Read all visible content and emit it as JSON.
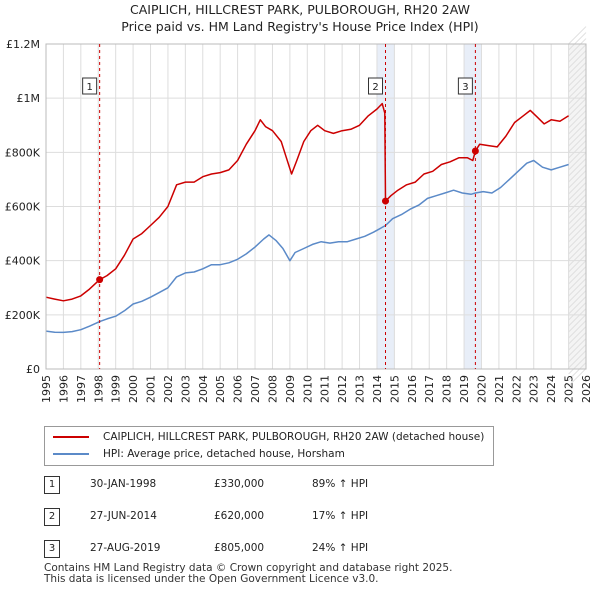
{
  "title_line1": "CAIPLICH, HILLCREST PARK, PULBOROUGH, RH20 2AW",
  "title_line2": "Price paid vs. HM Land Registry's House Price Index (HPI)",
  "colors": {
    "property": "#cc0000",
    "hpi": "#5b8ac8",
    "shade": "#e8eef8",
    "marker": "#cc0000",
    "grid": "#dddddd"
  },
  "legend": {
    "property_label": "CAIPLICH, HILLCREST PARK, PULBOROUGH, RH20 2AW (detached house)",
    "hpi_label": "HPI: Average price, detached house, Horsham"
  },
  "transactions": [
    {
      "num": "1",
      "date": "30-JAN-1998",
      "price": "£330,000",
      "hpi": "89% ↑ HPI"
    },
    {
      "num": "2",
      "date": "27-JUN-2014",
      "price": "£620,000",
      "hpi": "17% ↑ HPI"
    },
    {
      "num": "3",
      "date": "27-AUG-2019",
      "price": "£805,000",
      "hpi": "24% ↑ HPI"
    }
  ],
  "footer": {
    "line1": "Contains HM Land Registry data © Crown copyright and database right 2025.",
    "line2": "This data is licensed under the Open Government Licence v3.0."
  },
  "chart_data": {
    "type": "line",
    "title": "Price paid vs. HM Land Registry's House Price Index (HPI)",
    "xlabel": "",
    "ylabel": "",
    "xlim": [
      1995,
      2026
    ],
    "ylim": [
      0,
      1200000
    ],
    "y_ticks": [
      0,
      200000,
      400000,
      600000,
      800000,
      1000000,
      1200000
    ],
    "y_tick_labels": [
      "£0",
      "£200K",
      "£400K",
      "£600K",
      "£800K",
      "£1M",
      "£1.2M"
    ],
    "x_ticks": [
      1995,
      1996,
      1997,
      1998,
      1999,
      2000,
      2001,
      2002,
      2003,
      2004,
      2005,
      2006,
      2007,
      2008,
      2009,
      2010,
      2011,
      2012,
      2013,
      2014,
      2015,
      2016,
      2017,
      2018,
      2019,
      2020,
      2021,
      2022,
      2023,
      2024,
      2025,
      2026
    ],
    "x_tick_labels": [
      "1995",
      "1996",
      "1997",
      "1998",
      "1999",
      "2000",
      "2001",
      "2002",
      "2003",
      "2004",
      "2005",
      "2006",
      "2007",
      "2008",
      "2009",
      "2010",
      "2011",
      "2012",
      "2013",
      "2014",
      "2015",
      "2016",
      "2017",
      "2018",
      "2019",
      "2020",
      "2021",
      "2022",
      "2023",
      "2024",
      "2025",
      "2026"
    ],
    "shaded_years": [
      2014,
      2015,
      2019,
      2020
    ],
    "future_from": 2025,
    "sales": [
      {
        "label": "1",
        "year": 1998.08,
        "value": 330000
      },
      {
        "label": "2",
        "year": 2014.49,
        "value": 620000
      },
      {
        "label": "3",
        "year": 2019.65,
        "value": 805000
      }
    ],
    "series": [
      {
        "name": "CAIPLICH, HILLCREST PARK, PULBOROUGH, RH20 2AW (detached house)",
        "points": [
          [
            1995.0,
            265000
          ],
          [
            1995.5,
            258000
          ],
          [
            1996.0,
            252000
          ],
          [
            1996.5,
            258000
          ],
          [
            1997.0,
            270000
          ],
          [
            1997.5,
            295000
          ],
          [
            1998.08,
            330000
          ],
          [
            1998.5,
            345000
          ],
          [
            1999.0,
            370000
          ],
          [
            1999.5,
            420000
          ],
          [
            2000.0,
            480000
          ],
          [
            2000.5,
            500000
          ],
          [
            2001.0,
            530000
          ],
          [
            2001.5,
            560000
          ],
          [
            2002.0,
            600000
          ],
          [
            2002.5,
            680000
          ],
          [
            2003.0,
            690000
          ],
          [
            2003.5,
            690000
          ],
          [
            2004.0,
            710000
          ],
          [
            2004.5,
            720000
          ],
          [
            2005.0,
            725000
          ],
          [
            2005.5,
            735000
          ],
          [
            2006.0,
            770000
          ],
          [
            2006.5,
            830000
          ],
          [
            2007.0,
            880000
          ],
          [
            2007.3,
            920000
          ],
          [
            2007.6,
            895000
          ],
          [
            2008.0,
            880000
          ],
          [
            2008.5,
            840000
          ],
          [
            2008.8,
            780000
          ],
          [
            2009.1,
            720000
          ],
          [
            2009.4,
            770000
          ],
          [
            2009.8,
            840000
          ],
          [
            2010.2,
            880000
          ],
          [
            2010.6,
            900000
          ],
          [
            2011.0,
            880000
          ],
          [
            2011.5,
            870000
          ],
          [
            2012.0,
            880000
          ],
          [
            2012.5,
            885000
          ],
          [
            2013.0,
            900000
          ],
          [
            2013.5,
            935000
          ],
          [
            2014.0,
            960000
          ],
          [
            2014.3,
            980000
          ],
          [
            2014.45,
            945000
          ],
          [
            2014.49,
            620000
          ],
          [
            2014.8,
            640000
          ],
          [
            2015.2,
            660000
          ],
          [
            2015.7,
            680000
          ],
          [
            2016.2,
            690000
          ],
          [
            2016.7,
            720000
          ],
          [
            2017.2,
            730000
          ],
          [
            2017.7,
            755000
          ],
          [
            2018.2,
            765000
          ],
          [
            2018.7,
            780000
          ],
          [
            2019.2,
            780000
          ],
          [
            2019.5,
            770000
          ],
          [
            2019.65,
            805000
          ],
          [
            2019.9,
            830000
          ],
          [
            2020.4,
            825000
          ],
          [
            2020.9,
            820000
          ],
          [
            2021.4,
            860000
          ],
          [
            2021.9,
            910000
          ],
          [
            2022.4,
            935000
          ],
          [
            2022.8,
            955000
          ],
          [
            2023.2,
            930000
          ],
          [
            2023.6,
            905000
          ],
          [
            2024.0,
            920000
          ],
          [
            2024.5,
            915000
          ],
          [
            2025.0,
            935000
          ]
        ]
      },
      {
        "name": "HPI: Average price, detached house, Horsham",
        "points": [
          [
            1995.0,
            140000
          ],
          [
            1995.5,
            136000
          ],
          [
            1996.0,
            135000
          ],
          [
            1996.5,
            138000
          ],
          [
            1997.0,
            145000
          ],
          [
            1997.5,
            158000
          ],
          [
            1998.08,
            175000
          ],
          [
            1998.5,
            185000
          ],
          [
            1999.0,
            195000
          ],
          [
            1999.5,
            215000
          ],
          [
            2000.0,
            240000
          ],
          [
            2000.5,
            250000
          ],
          [
            2001.0,
            265000
          ],
          [
            2001.5,
            282000
          ],
          [
            2002.0,
            300000
          ],
          [
            2002.5,
            340000
          ],
          [
            2003.0,
            355000
          ],
          [
            2003.5,
            358000
          ],
          [
            2004.0,
            370000
          ],
          [
            2004.5,
            385000
          ],
          [
            2005.0,
            385000
          ],
          [
            2005.5,
            392000
          ],
          [
            2006.0,
            405000
          ],
          [
            2006.5,
            425000
          ],
          [
            2007.0,
            450000
          ],
          [
            2007.5,
            480000
          ],
          [
            2007.8,
            495000
          ],
          [
            2008.2,
            475000
          ],
          [
            2008.6,
            445000
          ],
          [
            2009.0,
            400000
          ],
          [
            2009.3,
            430000
          ],
          [
            2009.8,
            445000
          ],
          [
            2010.3,
            460000
          ],
          [
            2010.8,
            470000
          ],
          [
            2011.3,
            465000
          ],
          [
            2011.8,
            470000
          ],
          [
            2012.3,
            470000
          ],
          [
            2012.8,
            480000
          ],
          [
            2013.3,
            490000
          ],
          [
            2013.8,
            505000
          ],
          [
            2014.49,
            530000
          ],
          [
            2014.9,
            555000
          ],
          [
            2015.4,
            570000
          ],
          [
            2015.9,
            590000
          ],
          [
            2016.4,
            605000
          ],
          [
            2016.9,
            630000
          ],
          [
            2017.4,
            640000
          ],
          [
            2017.9,
            650000
          ],
          [
            2018.4,
            660000
          ],
          [
            2018.9,
            650000
          ],
          [
            2019.4,
            645000
          ],
          [
            2019.65,
            650000
          ],
          [
            2020.1,
            655000
          ],
          [
            2020.6,
            650000
          ],
          [
            2021.1,
            670000
          ],
          [
            2021.6,
            700000
          ],
          [
            2022.1,
            730000
          ],
          [
            2022.6,
            760000
          ],
          [
            2023.0,
            770000
          ],
          [
            2023.5,
            745000
          ],
          [
            2024.0,
            735000
          ],
          [
            2024.5,
            745000
          ],
          [
            2025.0,
            755000
          ]
        ]
      }
    ]
  }
}
